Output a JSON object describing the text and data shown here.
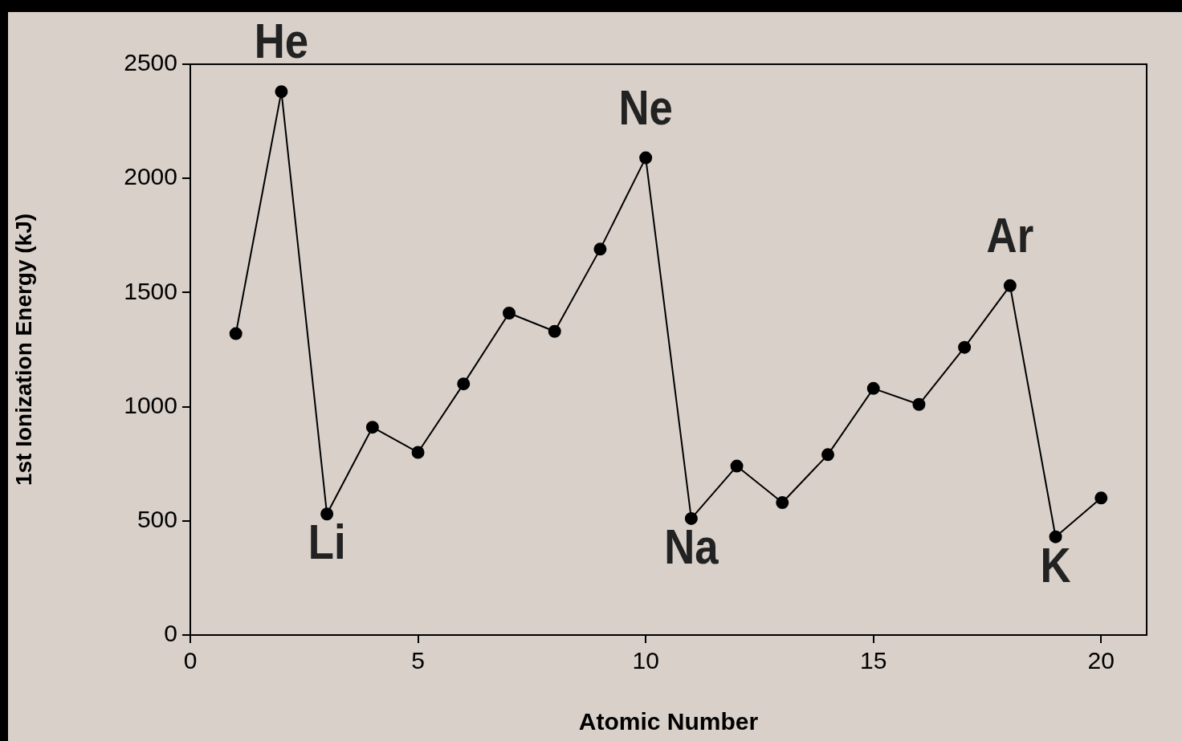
{
  "chart_data": {
    "type": "line",
    "xlabel": "Atomic Number",
    "ylabel": "1st Ionization Energy (kJ)",
    "x": [
      1,
      2,
      3,
      4,
      5,
      6,
      7,
      8,
      9,
      10,
      11,
      12,
      13,
      14,
      15,
      16,
      17,
      18,
      19,
      20
    ],
    "series": [
      {
        "color": "#000000",
        "values": [
          1320,
          2380,
          530,
          910,
          800,
          1100,
          1410,
          1330,
          1690,
          2090,
          510,
          740,
          580,
          790,
          1080,
          1010,
          1260,
          1530,
          430,
          600
        ]
      }
    ],
    "xlim": [
      0,
      21
    ],
    "xticks": [
      0,
      5,
      10,
      15,
      20
    ],
    "ylim": [
      0,
      2500
    ],
    "yticks": [
      0,
      500,
      1000,
      1500,
      2000,
      2500
    ],
    "grid": false,
    "legend": false,
    "marker": "circle",
    "line_style": "solid",
    "annotations": [
      {
        "text": "He",
        "x": 2,
        "y": 2380
      },
      {
        "text": "Li",
        "x": 3,
        "y": 530
      },
      {
        "text": "Ne",
        "x": 10,
        "y": 2090
      },
      {
        "text": "Na",
        "x": 11,
        "y": 510
      },
      {
        "text": "Ar",
        "x": 18,
        "y": 1530
      },
      {
        "text": "K",
        "x": 19,
        "y": 430
      }
    ]
  }
}
